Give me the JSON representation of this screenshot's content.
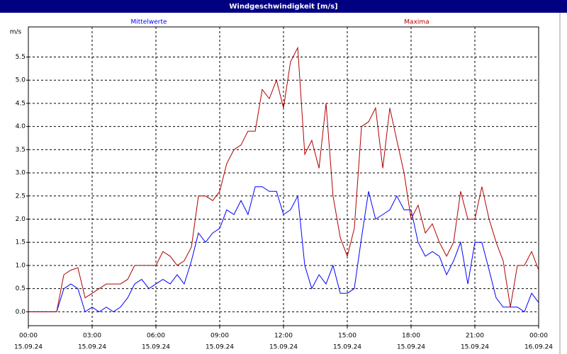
{
  "chart_data": {
    "type": "line",
    "title": "Windgeschwindigkeit [m/s]",
    "y_label": "m/s",
    "x": [
      0,
      0.33,
      0.67,
      1,
      1.33,
      1.67,
      2,
      2.33,
      2.67,
      3,
      3.33,
      3.67,
      4,
      4.33,
      4.67,
      5,
      5.33,
      5.67,
      6,
      6.33,
      6.67,
      7,
      7.33,
      7.67,
      8,
      8.33,
      8.67,
      9,
      9.33,
      9.67,
      10,
      10.33,
      10.67,
      11,
      11.33,
      11.67,
      12,
      12.33,
      12.67,
      13,
      13.33,
      13.67,
      14,
      14.33,
      14.67,
      15,
      15.33,
      15.67,
      16,
      16.33,
      16.67,
      17,
      17.33,
      17.67,
      18,
      18.33,
      18.67,
      19,
      19.33,
      19.67,
      20,
      20.33,
      20.67,
      21,
      21.33,
      21.67,
      22,
      22.33,
      22.67,
      23,
      23.33,
      23.67,
      24
    ],
    "series": [
      {
        "name": "Mittelwerte",
        "color": "#0000ff",
        "values": [
          0,
          0,
          0,
          0,
          0,
          0.5,
          0.6,
          0.5,
          0,
          0.1,
          0,
          0.1,
          0,
          0.1,
          0.3,
          0.6,
          0.7,
          0.5,
          0.6,
          0.7,
          0.6,
          0.8,
          0.6,
          1.1,
          1.7,
          1.5,
          1.7,
          1.8,
          2.2,
          2.1,
          2.4,
          2.1,
          2.7,
          2.7,
          2.6,
          2.6,
          2.1,
          2.2,
          2.5,
          1.0,
          0.5,
          0.8,
          0.6,
          1.0,
          0.4,
          0.4,
          0.5,
          1.6,
          2.6,
          2.0,
          2.1,
          2.2,
          2.5,
          2.2,
          2.2,
          1.5,
          1.2,
          1.3,
          1.2,
          0.8,
          1.1,
          1.5,
          0.6,
          1.5,
          1.5,
          0.9,
          0.3,
          0.1,
          0.1,
          0.1,
          0,
          0.4,
          0.2
        ]
      },
      {
        "name": "Maxima",
        "color": "#b00000",
        "values": [
          0,
          0,
          0,
          0,
          0,
          0.8,
          0.9,
          0.95,
          0.3,
          0.4,
          0.5,
          0.6,
          0.6,
          0.6,
          0.7,
          1.0,
          1.0,
          1.0,
          1.0,
          1.3,
          1.2,
          1.0,
          1.1,
          1.4,
          2.5,
          2.5,
          2.4,
          2.6,
          3.2,
          3.5,
          3.6,
          3.9,
          3.9,
          4.8,
          4.6,
          5.0,
          4.4,
          5.4,
          5.7,
          3.4,
          3.7,
          3.1,
          4.5,
          2.5,
          1.6,
          1.2,
          1.8,
          4.0,
          4.1,
          4.4,
          3.1,
          4.4,
          3.7,
          3.0,
          2.0,
          2.3,
          1.7,
          1.9,
          1.5,
          1.2,
          1.5,
          2.6,
          2.0,
          2.0,
          2.7,
          2.0,
          1.5,
          1.1,
          0.1,
          1.0,
          1.0,
          1.3,
          0.9
        ]
      }
    ],
    "xlim": [
      0,
      24
    ],
    "ylim": [
      -0.3,
      6.15
    ],
    "xticks": [
      {
        "value": 0,
        "label": "00:00"
      },
      {
        "value": 3,
        "label": "03:00"
      },
      {
        "value": 6,
        "label": "06:00"
      },
      {
        "value": 9,
        "label": "09:00"
      },
      {
        "value": 12,
        "label": "12:00"
      },
      {
        "value": 15,
        "label": "15:00"
      },
      {
        "value": 18,
        "label": "18:00"
      },
      {
        "value": 21,
        "label": "21:00"
      },
      {
        "value": 24,
        "label": "00:00"
      }
    ],
    "xtick_dates": [
      "15.09.24",
      "15.09.24",
      "15.09.24",
      "15.09.24",
      "15.09.24",
      "15.09.24",
      "15.09.24",
      "15.09.24",
      "16.09.24"
    ],
    "yticks": [
      {
        "value": 0,
        "label": "0.0"
      },
      0.5,
      {
        "value": 1,
        "label": "1.0"
      },
      1.5,
      {
        "value": 2,
        "label": "2.0"
      },
      2.5,
      {
        "value": 3,
        "label": "3.0"
      },
      3.5,
      {
        "value": 4,
        "label": "4.0"
      },
      4.5,
      {
        "value": 5,
        "label": "5.0"
      },
      5.5
    ],
    "grid": true
  }
}
